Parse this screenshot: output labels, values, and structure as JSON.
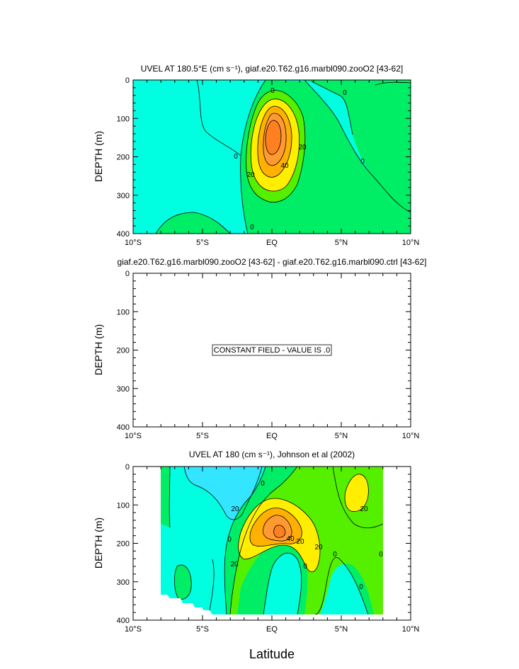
{
  "chart_data": [
    {
      "type": "contour",
      "title": "UVEL AT 180.5°E (cm s⁻¹), giaf.e20.T62.g16.marbl090.zooO2 [43-62]",
      "ylabel": "DEPTH (m)",
      "xlabel": "",
      "x_ticks": [
        "10°S",
        "5°S",
        "EQ",
        "5°N",
        "10°N"
      ],
      "y_ticks": [
        "0",
        "100",
        "200",
        "300",
        "400"
      ],
      "xlim": [
        -10,
        10
      ],
      "ylim": [
        0,
        400
      ],
      "y_inverted": true,
      "contour_interval": 10,
      "contour_labels": [
        "0",
        "0",
        "0",
        "0",
        "0",
        "20",
        "20",
        "40"
      ],
      "jet_core": {
        "latitude": 0,
        "depth": 170,
        "max": 70
      }
    },
    {
      "type": "contour",
      "title": "giaf.e20.T62.g16.marbl090.zooO2 [43-62] - giaf.e20.T62.g16.marbl090.ctrl [43-62]",
      "ylabel": "DEPTH (m)",
      "xlabel": "",
      "x_ticks": [
        "10°S",
        "5°S",
        "EQ",
        "5°N",
        "10°N"
      ],
      "y_ticks": [
        "0",
        "100",
        "200",
        "300",
        "400"
      ],
      "xlim": [
        -10,
        10
      ],
      "ylim": [
        0,
        400
      ],
      "y_inverted": true,
      "annotation": "CONSTANT FIELD - VALUE IS .0"
    },
    {
      "type": "contour",
      "title": "UVEL AT 180 (cm s⁻¹), Johnson et al (2002)",
      "ylabel": "DEPTH (m)",
      "xlabel": "Latitude",
      "x_ticks": [
        "10°S",
        "5°S",
        "EQ",
        "5°N",
        "10°N"
      ],
      "y_ticks": [
        "0",
        "100",
        "200",
        "300",
        "400"
      ],
      "xlim": [
        -10,
        10
      ],
      "ylim": [
        0,
        400
      ],
      "y_inverted": true,
      "data_extent_latitude": [
        -8,
        8
      ],
      "contour_interval": 10,
      "contour_labels": [
        "0",
        "20",
        "20",
        "20",
        "20",
        "20",
        "40",
        "0",
        "0",
        "0",
        "0",
        "0"
      ],
      "jet_core": {
        "latitude": 0.5,
        "depth": 170,
        "max": 60
      }
    }
  ],
  "colors": {
    "neg": "#00ffe0",
    "neg_strong": "#33e5ff",
    "l0": "#00ee66",
    "l10": "#55f000",
    "l20": "#ffee00",
    "l40": "#ffb000",
    "l50": "#ff9a33",
    "l60": "#ff8020",
    "line": "#000000"
  }
}
